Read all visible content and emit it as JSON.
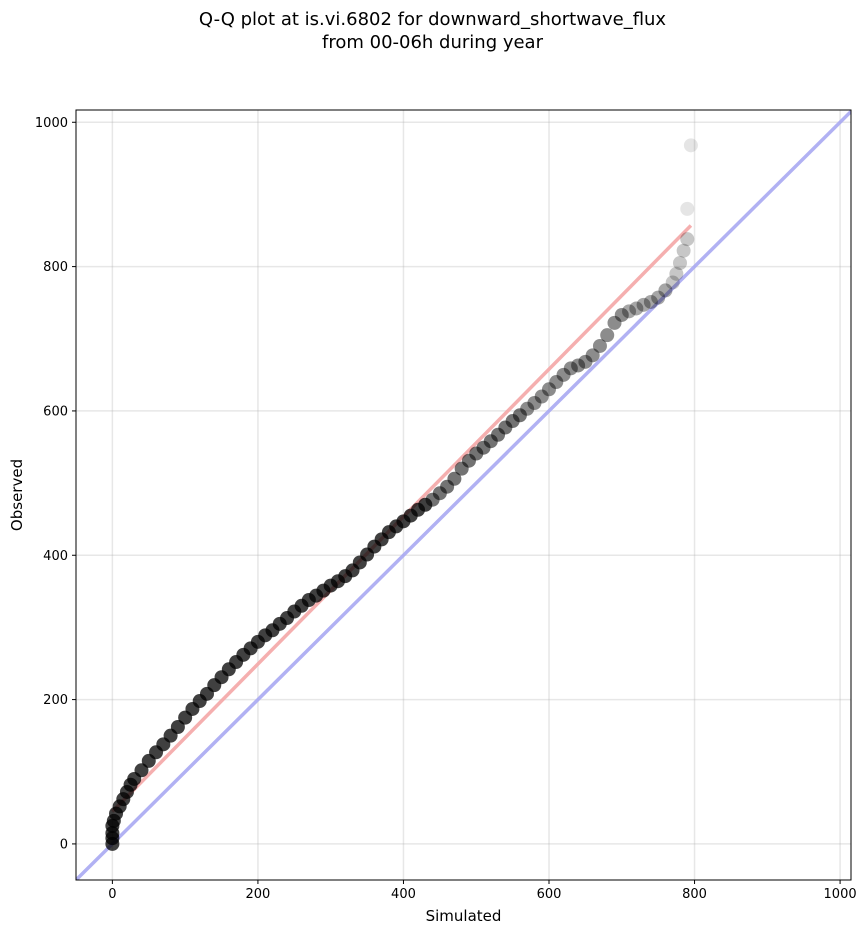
{
  "chart_data": {
    "type": "scatter",
    "title_line1": "Q-Q plot at is.vi.6802 for downward_shortwave_flux",
    "title_line2": "from 00-06h during year",
    "xlabel": "Simulated",
    "ylabel": "Observed",
    "xlim": [
      -50,
      1015
    ],
    "ylim": [
      -50,
      1017
    ],
    "xticks": [
      0,
      200,
      400,
      600,
      800,
      1000
    ],
    "yticks": [
      0,
      200,
      400,
      600,
      800,
      1000
    ],
    "grid": true,
    "series": [
      {
        "kind": "points",
        "color": "#000000",
        "points": [
          [
            0,
            0
          ],
          [
            0,
            8
          ],
          [
            0,
            15
          ],
          [
            0,
            25
          ],
          [
            2,
            32
          ],
          [
            5,
            42
          ],
          [
            10,
            52
          ],
          [
            15,
            62
          ],
          [
            20,
            72
          ],
          [
            25,
            82
          ],
          [
            30,
            90
          ],
          [
            40,
            102
          ],
          [
            50,
            115
          ],
          [
            60,
            127
          ],
          [
            70,
            138
          ],
          [
            80,
            150
          ],
          [
            90,
            162
          ],
          [
            100,
            175
          ],
          [
            110,
            187
          ],
          [
            120,
            198
          ],
          [
            130,
            208
          ],
          [
            140,
            220
          ],
          [
            150,
            231
          ],
          [
            160,
            242
          ],
          [
            170,
            252
          ],
          [
            180,
            262
          ],
          [
            190,
            271
          ],
          [
            200,
            280
          ],
          [
            210,
            289
          ],
          [
            220,
            296
          ],
          [
            230,
            305
          ],
          [
            240,
            313
          ],
          [
            250,
            322
          ],
          [
            260,
            330
          ],
          [
            270,
            338
          ],
          [
            280,
            344
          ],
          [
            290,
            351
          ],
          [
            300,
            358
          ],
          [
            310,
            364
          ],
          [
            320,
            371
          ],
          [
            330,
            379
          ],
          [
            340,
            390
          ],
          [
            350,
            401
          ],
          [
            360,
            412
          ],
          [
            370,
            422
          ],
          [
            380,
            432
          ],
          [
            390,
            440
          ],
          [
            400,
            447
          ],
          [
            410,
            455
          ],
          [
            420,
            463
          ],
          [
            430,
            470
          ],
          [
            440,
            477
          ],
          [
            450,
            486
          ],
          [
            460,
            495
          ],
          [
            470,
            506
          ],
          [
            480,
            520
          ],
          [
            490,
            531
          ],
          [
            500,
            541
          ],
          [
            510,
            549
          ],
          [
            520,
            558
          ],
          [
            530,
            567
          ],
          [
            540,
            577
          ],
          [
            550,
            586
          ],
          [
            560,
            594
          ],
          [
            570,
            603
          ],
          [
            580,
            611
          ],
          [
            590,
            620
          ],
          [
            600,
            630
          ],
          [
            610,
            640
          ],
          [
            620,
            650
          ],
          [
            630,
            659
          ],
          [
            640,
            663
          ],
          [
            650,
            668
          ],
          [
            660,
            677
          ],
          [
            670,
            690
          ],
          [
            680,
            705
          ],
          [
            690,
            722
          ],
          [
            700,
            733
          ],
          [
            710,
            738
          ],
          [
            720,
            742
          ],
          [
            730,
            747
          ],
          [
            740,
            751
          ],
          [
            750,
            757
          ],
          [
            760,
            767
          ],
          [
            770,
            778
          ],
          [
            775,
            790
          ],
          [
            780,
            805
          ],
          [
            785,
            822
          ],
          [
            790,
            838
          ],
          [
            790,
            880
          ],
          [
            795,
            968
          ]
        ]
      },
      {
        "kind": "line",
        "name": "",
        "color": "#f4a6a6",
        "x": [
          0,
          795
        ],
        "y": [
          45,
          857
        ]
      },
      {
        "kind": "line",
        "name": "",
        "color": "#a9a9f2",
        "x": [
          -50,
          1015
        ],
        "y": [
          -50,
          1015
        ]
      }
    ]
  }
}
